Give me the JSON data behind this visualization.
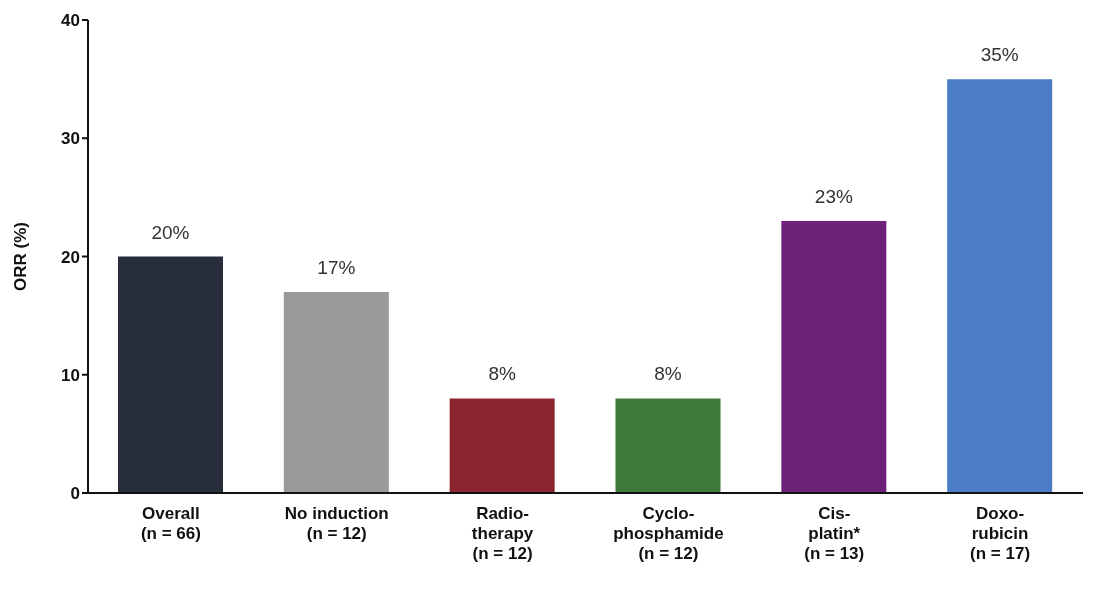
{
  "chart_data": {
    "type": "bar",
    "ylabel": "ORR (%)",
    "categories": [
      "Overall\n(n = 66)",
      "No induction\n(n = 12)",
      "Radio-\ntherapy\n(n = 12)",
      "Cyclo-\nphosphamide\n(n = 12)",
      "Cis-\nplatin*\n(n = 13)",
      "Doxo-\nrubicin\n(n = 17)"
    ],
    "values": [
      20,
      17,
      8,
      8,
      23,
      35
    ],
    "colors": [
      "#272d3b",
      "#9a9a9a",
      "#8b2530",
      "#3f7a3a",
      "#6c2278",
      "#4a7dc4"
    ],
    "value_labels": [
      "20%",
      "17%",
      "8%",
      "8%",
      "23%",
      "35%"
    ],
    "ylim": [
      0,
      40
    ],
    "yticks": [
      0,
      10,
      20,
      30,
      40
    ],
    "grid": false
  }
}
